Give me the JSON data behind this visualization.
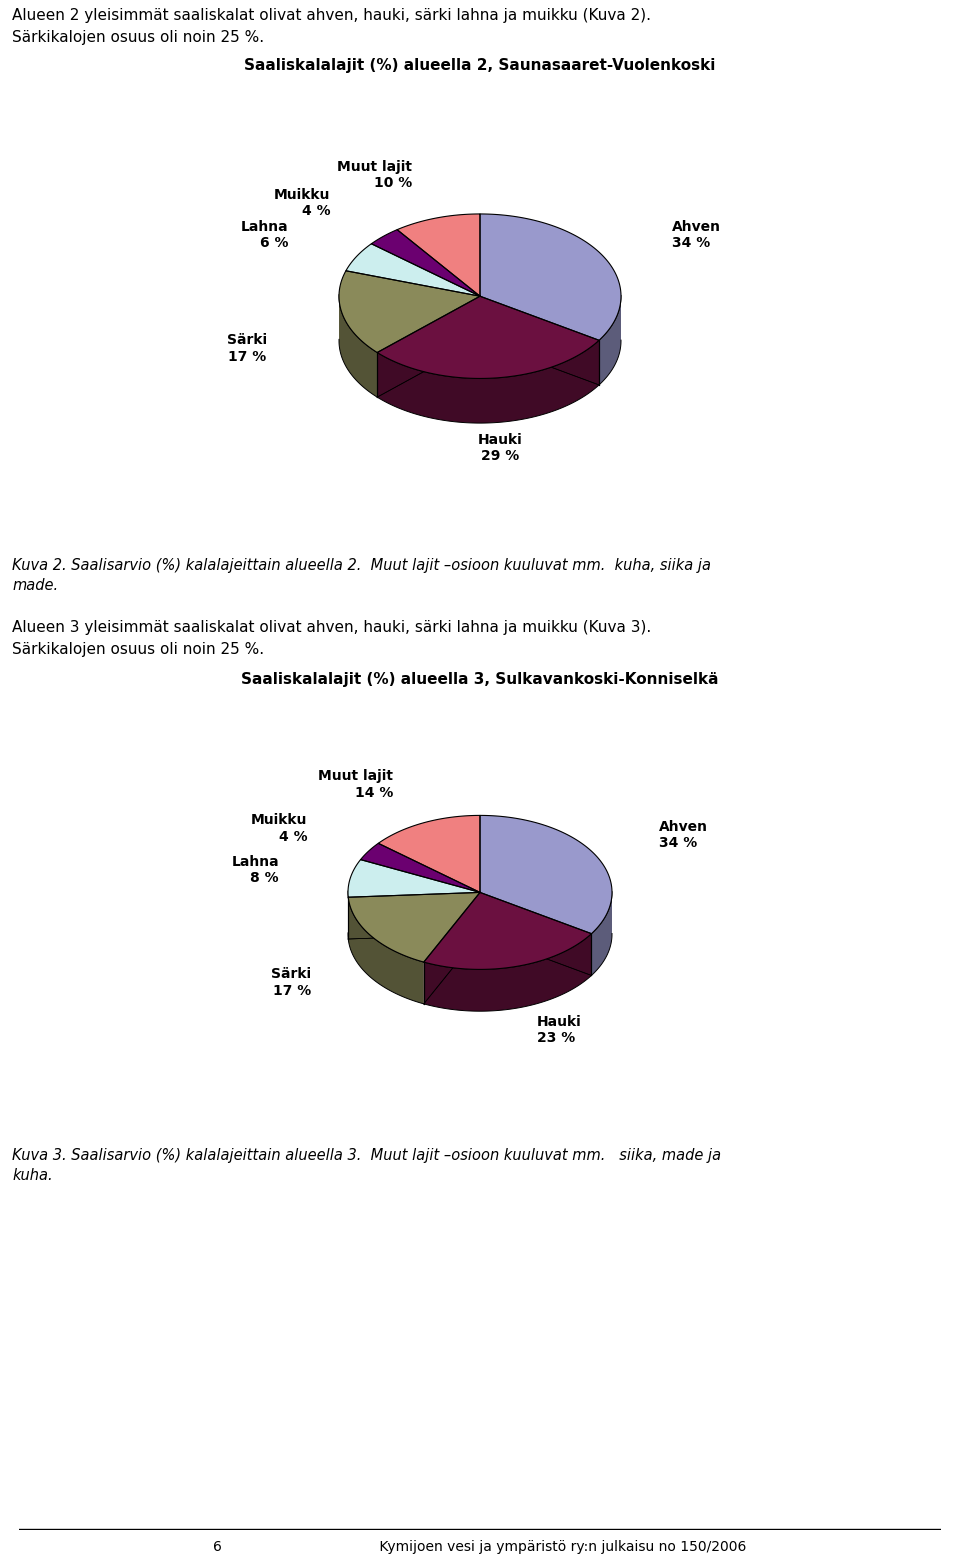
{
  "chart1": {
    "title": "Saaliskalalajit (%) alueella 2, Saunasaaret-Vuolenkoski",
    "labels": [
      "Ahven",
      "Hauki",
      "Särki",
      "Lahna",
      "Muikku",
      "Muut lajit"
    ],
    "pct_labels": [
      "34 %",
      "29 %",
      "17 %",
      "6 %",
      "4 %",
      "10 %"
    ],
    "values": [
      34,
      29,
      17,
      6,
      4,
      10
    ],
    "colors": [
      "#9999CC",
      "#6B1040",
      "#8A8A5A",
      "#CCEEEE",
      "#6B0070",
      "#F08080"
    ],
    "start_angle": 90,
    "label_angles": [
      null,
      null,
      null,
      null,
      null,
      null
    ]
  },
  "chart2": {
    "title": "Saaliskalalajit (%) alueella 3, Sulkavankoski-Konniselkä",
    "labels": [
      "Ahven",
      "Hauki",
      "Särki",
      "Lahna",
      "Muikku",
      "Muut lajit"
    ],
    "pct_labels": [
      "34 %",
      "23 %",
      "17 %",
      "8 %",
      "4 %",
      "14 %"
    ],
    "values": [
      34,
      23,
      17,
      8,
      4,
      14
    ],
    "colors": [
      "#9999CC",
      "#6B1040",
      "#8A8A5A",
      "#CCEEEE",
      "#6B0070",
      "#F08080"
    ],
    "start_angle": 90,
    "label_angles": [
      null,
      null,
      null,
      null,
      null,
      null
    ]
  },
  "text1_line1": "Alueen 2 yleisimmät saaliskalat olivat ahven, hauki, särki lahna ja muikku (Kuva 2).",
  "text1_line2": "Särkikalojen osuus oli noin 25 %.",
  "caption1_line1": "Kuva 2. Saalisarvio (%) kalalajeittain alueella 2.  Muut lajit –osioon kuuluvat mm.  kuha, siika ja",
  "caption1_line2": "made.",
  "text2_line1": "Alueen 3 yleisimmät saaliskalat olivat ahven, hauki, särki lahna ja muikku (Kuva 3).",
  "text2_line2": "Särkikalojen osuus oli noin 25 %.",
  "caption2_line1": "Kuva 3. Saalisarvio (%) kalalajeittain alueella 3.  Muut lajit –osioon kuuluvat mm.   siika, made ja",
  "caption2_line2": "kuha.",
  "footer": "6                                    Kymijoen vesi ja ympäristö ry:n julkaisu no 150/2006"
}
